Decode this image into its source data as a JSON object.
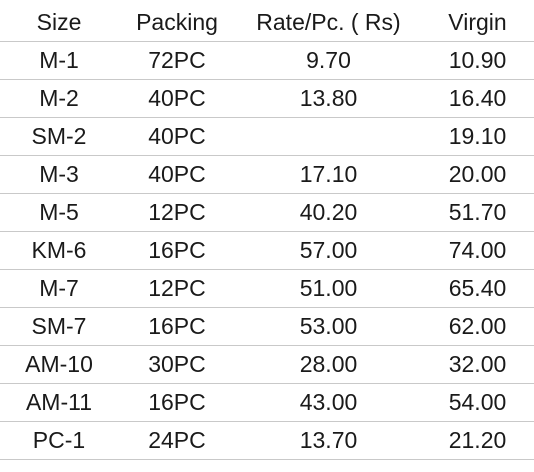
{
  "table": {
    "headers": {
      "size": "Size",
      "packing": "Packing",
      "rate": "Rate/Pc. ( Rs)",
      "virgin": "Virgin"
    },
    "rows": [
      {
        "size": "M-1",
        "packing": "72PC",
        "rate": "9.70",
        "virgin": "10.90"
      },
      {
        "size": "M-2",
        "packing": "40PC",
        "rate": "13.80",
        "virgin": "16.40"
      },
      {
        "size": "SM-2",
        "packing": "40PC",
        "rate": "",
        "virgin": "19.10"
      },
      {
        "size": "M-3",
        "packing": "40PC",
        "rate": "17.10",
        "virgin": "20.00"
      },
      {
        "size": "M-5",
        "packing": "12PC",
        "rate": "40.20",
        "virgin": "51.70"
      },
      {
        "size": "KM-6",
        "packing": "16PC",
        "rate": "57.00",
        "virgin": "74.00"
      },
      {
        "size": "M-7",
        "packing": "12PC",
        "rate": "51.00",
        "virgin": "65.40"
      },
      {
        "size": "SM-7",
        "packing": "16PC",
        "rate": "53.00",
        "virgin": "62.00"
      },
      {
        "size": "AM-10",
        "packing": "30PC",
        "rate": "28.00",
        "virgin": "32.00"
      },
      {
        "size": "AM-11",
        "packing": "16PC",
        "rate": "43.00",
        "virgin": "54.00"
      },
      {
        "size": "PC-1",
        "packing": "24PC",
        "rate": "13.70",
        "virgin": "21.20"
      }
    ]
  }
}
